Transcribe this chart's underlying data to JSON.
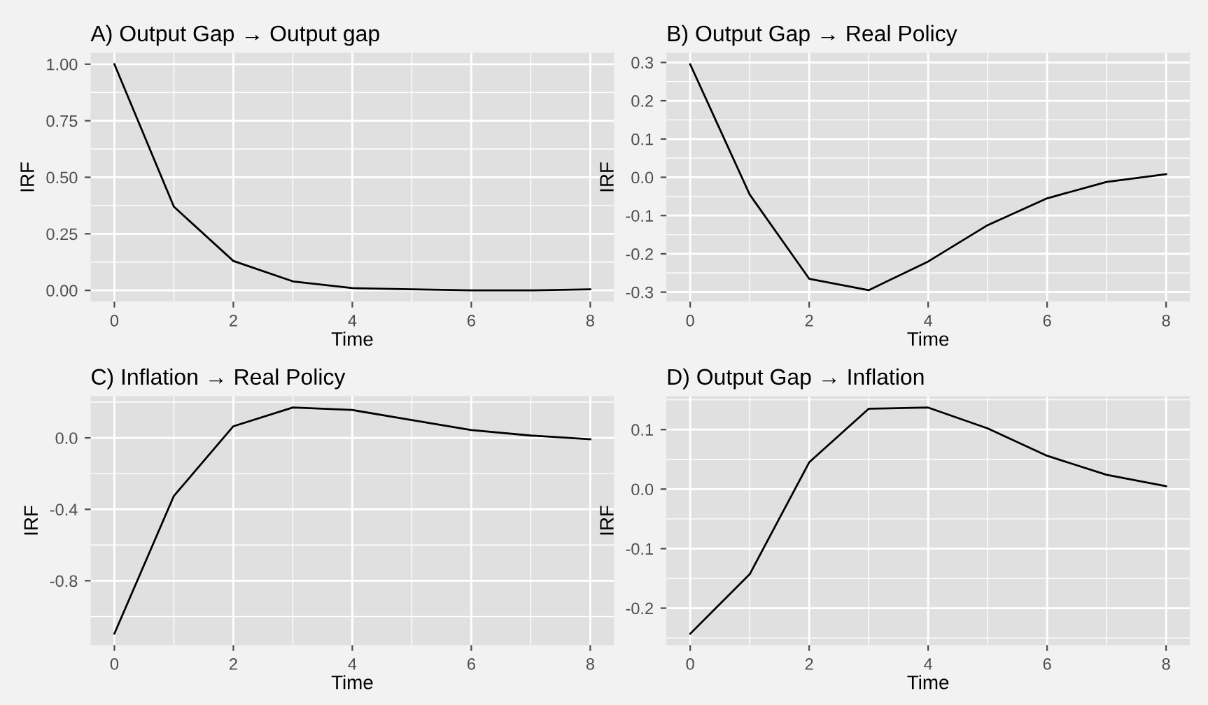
{
  "chart_data": [
    {
      "type": "line",
      "title": "A) Output Gap → Output gap",
      "xlabel": "Time",
      "ylabel": "IRF",
      "x": [
        0,
        1,
        2,
        3,
        4,
        5,
        6,
        7,
        8
      ],
      "series": [
        {
          "color": "#000000",
          "values": [
            1.0,
            0.37,
            0.13,
            0.04,
            0.01,
            0.005,
            0.0,
            0.0,
            0.005
          ]
        }
      ],
      "xlim": [
        -0.4,
        8.4
      ],
      "ylim": [
        -0.05,
        1.05
      ],
      "xticks": [
        0,
        2,
        4,
        6,
        8
      ],
      "yticks": [
        {
          "value": 0,
          "label": "0.00"
        },
        {
          "value": 0.25,
          "label": "0.25"
        },
        {
          "value": 0.5,
          "label": "0.50"
        },
        {
          "value": 0.75,
          "label": "0.75"
        },
        {
          "value": 1,
          "label": "1.00"
        }
      ],
      "grid": true
    },
    {
      "type": "line",
      "title": "B) Output Gap → Real Policy",
      "xlabel": "Time",
      "ylabel": "IRF",
      "x": [
        0,
        1,
        2,
        3,
        4,
        5,
        6,
        7,
        8
      ],
      "series": [
        {
          "color": "#000000",
          "values": [
            0.295,
            -0.045,
            -0.265,
            -0.295,
            -0.22,
            -0.125,
            -0.055,
            -0.012,
            0.008
          ]
        }
      ],
      "xlim": [
        -0.4,
        8.4
      ],
      "ylim": [
        -0.325,
        0.325
      ],
      "xticks": [
        0,
        2,
        4,
        6,
        8
      ],
      "yticks": [
        -0.3,
        -0.2,
        -0.1,
        {
          "value": 0,
          "label": "0.0"
        },
        0.1,
        0.2,
        0.3
      ],
      "grid": true
    },
    {
      "type": "line",
      "title": "C) Inflation → Real Policy",
      "xlabel": "Time",
      "ylabel": "IRF",
      "x": [
        0,
        1,
        2,
        3,
        4,
        5,
        6,
        7,
        8
      ],
      "series": [
        {
          "color": "#000000",
          "values": [
            -1.096,
            -0.325,
            0.065,
            0.17,
            0.156,
            0.1,
            0.044,
            0.013,
            -0.008
          ]
        }
      ],
      "xlim": [
        -0.4,
        8.4
      ],
      "ylim": [
        -1.16,
        0.233
      ],
      "xticks": [
        0,
        2,
        4,
        6,
        8
      ],
      "yticks": [
        -0.8,
        -0.4,
        {
          "value": 0,
          "label": "0.0"
        }
      ],
      "grid": true
    },
    {
      "type": "line",
      "title": "D) Output Gap → Inflation",
      "xlabel": "Time",
      "ylabel": "IRF",
      "x": [
        0,
        1,
        2,
        3,
        4,
        5,
        6,
        7,
        8
      ],
      "series": [
        {
          "color": "#000000",
          "values": [
            -0.243,
            -0.143,
            0.045,
            0.135,
            0.137,
            0.102,
            0.056,
            0.024,
            0.005
          ]
        }
      ],
      "xlim": [
        -0.4,
        8.4
      ],
      "ylim": [
        -0.262,
        0.156
      ],
      "xticks": [
        0,
        2,
        4,
        6,
        8
      ],
      "yticks": [
        -0.2,
        -0.1,
        {
          "value": 0,
          "label": "0.0"
        },
        0.1
      ],
      "grid": true
    }
  ]
}
